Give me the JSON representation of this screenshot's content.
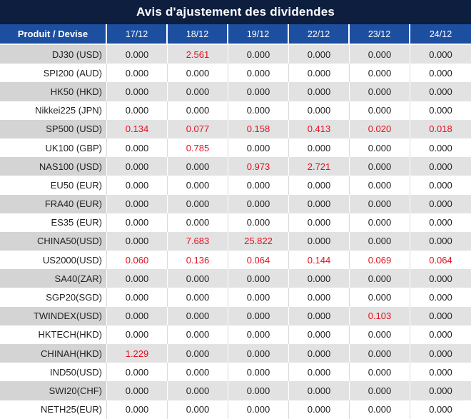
{
  "title": "Avis d'ajustement des dividendes",
  "colors": {
    "title_bg": "#0d1e3f",
    "header_bg": "#1d4fa1",
    "header_text": "#ffffff",
    "gray_row_product_bg": "#d4d4d4",
    "gray_row_bg": "#e2e2e2",
    "white_row_bg": "#ffffff",
    "grid_line": "#d9d9d9",
    "text_dark": "#1f1f1f",
    "negative_red": "#e3101e"
  },
  "table": {
    "columns": [
      "Produit / Devise",
      "17/12",
      "18/12",
      "19/12",
      "22/12",
      "23/12",
      "24/12"
    ],
    "rows": [
      {
        "product": "DJ30 (USD)",
        "values": [
          "0.000",
          "2.561",
          "0.000",
          "0.000",
          "0.000",
          "0.000"
        ],
        "red": [
          1
        ]
      },
      {
        "product": "SPI200 (AUD)",
        "values": [
          "0.000",
          "0.000",
          "0.000",
          "0.000",
          "0.000",
          "0.000"
        ],
        "red": []
      },
      {
        "product": "HK50 (HKD)",
        "values": [
          "0.000",
          "0.000",
          "0.000",
          "0.000",
          "0.000",
          "0.000"
        ],
        "red": []
      },
      {
        "product": "Nikkei225 (JPN)",
        "values": [
          "0.000",
          "0.000",
          "0.000",
          "0.000",
          "0.000",
          "0.000"
        ],
        "red": []
      },
      {
        "product": "SP500 (USD)",
        "values": [
          "0.134",
          "0.077",
          "0.158",
          "0.413",
          "0.020",
          "0.018"
        ],
        "red": [
          0,
          1,
          2,
          3,
          4,
          5
        ]
      },
      {
        "product": "UK100 (GBP)",
        "values": [
          "0.000",
          "0.785",
          "0.000",
          "0.000",
          "0.000",
          "0.000"
        ],
        "red": [
          1
        ]
      },
      {
        "product": "NAS100 (USD)",
        "values": [
          "0.000",
          "0.000",
          "0.973",
          "2.721",
          "0.000",
          "0.000"
        ],
        "red": [
          2,
          3
        ]
      },
      {
        "product": "EU50 (EUR)",
        "values": [
          "0.000",
          "0.000",
          "0.000",
          "0.000",
          "0.000",
          "0.000"
        ],
        "red": []
      },
      {
        "product": "FRA40 (EUR)",
        "values": [
          "0.000",
          "0.000",
          "0.000",
          "0.000",
          "0.000",
          "0.000"
        ],
        "red": []
      },
      {
        "product": "ES35 (EUR)",
        "values": [
          "0.000",
          "0.000",
          "0.000",
          "0.000",
          "0.000",
          "0.000"
        ],
        "red": []
      },
      {
        "product": "CHINA50(USD)",
        "values": [
          "0.000",
          "7.683",
          "25.822",
          "0.000",
          "0.000",
          "0.000"
        ],
        "red": [
          1,
          2
        ]
      },
      {
        "product": "US2000(USD)",
        "values": [
          "0.060",
          "0.136",
          "0.064",
          "0.144",
          "0.069",
          "0.064"
        ],
        "red": [
          0,
          1,
          2,
          3,
          4,
          5
        ]
      },
      {
        "product": "SA40(ZAR)",
        "values": [
          "0.000",
          "0.000",
          "0.000",
          "0.000",
          "0.000",
          "0.000"
        ],
        "red": []
      },
      {
        "product": "SGP20(SGD)",
        "values": [
          "0.000",
          "0.000",
          "0.000",
          "0.000",
          "0.000",
          "0.000"
        ],
        "red": []
      },
      {
        "product": "TWINDEX(USD)",
        "values": [
          "0.000",
          "0.000",
          "0.000",
          "0.000",
          "0.103",
          "0.000"
        ],
        "red": [
          4
        ]
      },
      {
        "product": "HKTECH(HKD)",
        "values": [
          "0.000",
          "0.000",
          "0.000",
          "0.000",
          "0.000",
          "0.000"
        ],
        "red": []
      },
      {
        "product": "CHINAH(HKD)",
        "values": [
          "1.229",
          "0.000",
          "0.000",
          "0.000",
          "0.000",
          "0.000"
        ],
        "red": [
          0
        ]
      },
      {
        "product": "IND50(USD)",
        "values": [
          "0.000",
          "0.000",
          "0.000",
          "0.000",
          "0.000",
          "0.000"
        ],
        "red": []
      },
      {
        "product": "SWI20(CHF)",
        "values": [
          "0.000",
          "0.000",
          "0.000",
          "0.000",
          "0.000",
          "0.000"
        ],
        "red": []
      },
      {
        "product": "NETH25(EUR)",
        "values": [
          "0.000",
          "0.000",
          "0.000",
          "0.000",
          "0.000",
          "0.000"
        ],
        "red": []
      }
    ]
  }
}
